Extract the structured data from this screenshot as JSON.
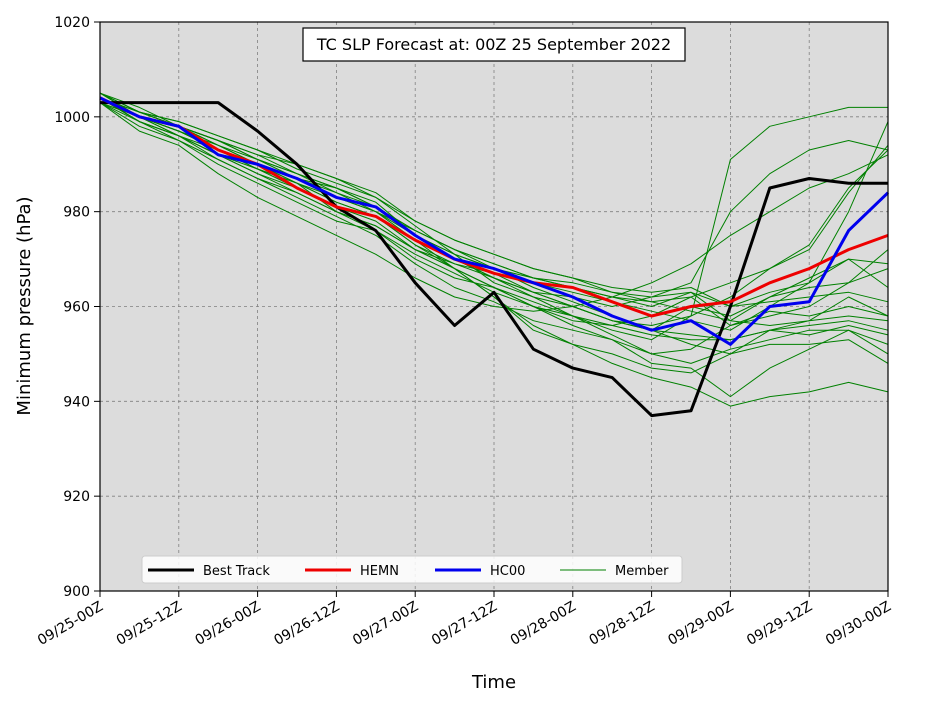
{
  "chart_data": {
    "type": "line",
    "title": "TC SLP Forecast at: 00Z 25 September 2022",
    "xlabel": "Time",
    "ylabel": "Minimum pressure (hPa)",
    "ylim": [
      900,
      1020
    ],
    "yticks": [
      900,
      920,
      940,
      960,
      980,
      1000,
      1020
    ],
    "x_tick_labels": [
      "09/25-00Z",
      "09/25-12Z",
      "09/26-00Z",
      "09/26-12Z",
      "09/27-00Z",
      "09/27-12Z",
      "09/28-00Z",
      "09/28-12Z",
      "09/29-00Z",
      "09/29-12Z",
      "09/30-00Z"
    ],
    "x_hours": [
      0,
      6,
      12,
      18,
      24,
      30,
      36,
      42,
      48,
      54,
      60,
      66,
      72,
      78,
      84,
      90,
      96,
      102,
      108,
      114,
      120
    ],
    "grid": true,
    "background_color": "#dcdcdc",
    "legend_position": "bottom-left",
    "series": [
      {
        "name": "Best Track",
        "color": "#000000",
        "width": 3,
        "values": [
          1003,
          1003,
          1003,
          1003,
          997,
          990,
          981,
          976,
          965,
          956,
          963,
          951,
          947,
          945,
          937,
          938,
          960,
          985,
          987,
          986,
          986
        ]
      },
      {
        "name": "HEMN",
        "color": "#ee0000",
        "width": 3,
        "values": [
          1004,
          1000,
          998,
          993,
          990,
          985,
          981,
          979,
          974,
          970,
          967,
          965,
          964,
          961,
          958,
          960,
          961,
          965,
          968,
          972,
          975
        ]
      },
      {
        "name": "HC00",
        "color": "#0000ee",
        "width": 3,
        "values": [
          1004,
          1000,
          998,
          992,
          990,
          987,
          983,
          981,
          975,
          970,
          968,
          965,
          962,
          958,
          955,
          957,
          952,
          960,
          961,
          976,
          984
        ]
      },
      {
        "name": "Member",
        "color": "#008000",
        "width": 1,
        "members": [
          [
            1005,
            1000,
            997,
            993,
            990,
            986,
            982,
            979,
            974,
            970,
            966,
            963,
            962,
            960,
            962,
            965,
            980,
            988,
            993,
            995,
            993
          ],
          [
            1004,
            999,
            996,
            992,
            988,
            984,
            980,
            977,
            972,
            969,
            966,
            962,
            958,
            955,
            953,
            958,
            991,
            998,
            1000,
            1002,
            1002
          ],
          [
            1004,
            1001,
            998,
            995,
            991,
            987,
            983,
            980,
            976,
            972,
            968,
            965,
            963,
            961,
            959,
            957,
            955,
            960,
            965,
            980,
            999
          ],
          [
            1003,
            998,
            995,
            990,
            986,
            982,
            978,
            976,
            970,
            966,
            964,
            961,
            958,
            954,
            950,
            948,
            951,
            953,
            955,
            955,
            952
          ],
          [
            1005,
            1001,
            999,
            996,
            993,
            990,
            987,
            984,
            978,
            974,
            971,
            968,
            966,
            963,
            962,
            963,
            957,
            962,
            966,
            970,
            969
          ],
          [
            1004,
            1000,
            996,
            991,
            987,
            983,
            979,
            975,
            969,
            964,
            961,
            957,
            955,
            953,
            948,
            947,
            941,
            947,
            951,
            955,
            950
          ],
          [
            1005,
            1000,
            998,
            994,
            990,
            987,
            985,
            982,
            975,
            971,
            968,
            964,
            961,
            958,
            955,
            960,
            958,
            962,
            964,
            965,
            972
          ],
          [
            1004,
            999,
            996,
            993,
            990,
            986,
            980,
            977,
            972,
            968,
            964,
            960,
            957,
            956,
            958,
            962,
            965,
            968,
            973,
            985,
            993
          ],
          [
            1003,
            1000,
            997,
            993,
            989,
            985,
            981,
            979,
            973,
            969,
            967,
            963,
            960,
            957,
            956,
            958,
            962,
            968,
            972,
            984,
            994
          ],
          [
            1004,
            1001,
            999,
            996,
            993,
            989,
            986,
            983,
            977,
            971,
            965,
            962,
            960,
            957,
            955,
            954,
            953,
            955,
            956,
            957,
            955
          ],
          [
            1005,
            1002,
            998,
            995,
            992,
            988,
            984,
            980,
            974,
            968,
            962,
            955,
            952,
            948,
            945,
            943,
            939,
            941,
            942,
            944,
            942
          ],
          [
            1004,
            1000,
            997,
            994,
            991,
            988,
            985,
            981,
            976,
            972,
            969,
            966,
            964,
            962,
            960,
            963,
            960,
            963,
            965,
            970,
            964
          ],
          [
            1003,
            997,
            994,
            988,
            983,
            979,
            975,
            971,
            966,
            962,
            960,
            959,
            960,
            962,
            965,
            969,
            975,
            980,
            985,
            988,
            992
          ],
          [
            1004,
            1000,
            997,
            993,
            989,
            986,
            982,
            979,
            973,
            968,
            962,
            956,
            952,
            950,
            947,
            946,
            950,
            955,
            957,
            962,
            958
          ],
          [
            1005,
            1001,
            998,
            995,
            992,
            990,
            987,
            983,
            978,
            974,
            971,
            968,
            966,
            964,
            963,
            964,
            960,
            961,
            962,
            963,
            961
          ],
          [
            1004,
            999,
            996,
            992,
            989,
            986,
            983,
            980,
            975,
            970,
            966,
            963,
            960,
            957,
            955,
            952,
            950,
            952,
            952,
            953,
            948
          ],
          [
            1004,
            1000,
            998,
            995,
            991,
            988,
            985,
            981,
            976,
            972,
            969,
            966,
            964,
            962,
            961,
            962,
            956,
            958,
            960,
            965,
            968
          ],
          [
            1005,
            1001,
            998,
            994,
            990,
            987,
            984,
            981,
            975,
            971,
            968,
            966,
            965,
            963,
            961,
            959,
            957,
            956,
            957,
            958,
            957
          ],
          [
            1004,
            1000,
            996,
            992,
            988,
            985,
            981,
            978,
            972,
            968,
            964,
            960,
            956,
            953,
            950,
            951,
            956,
            959,
            958,
            960,
            958
          ],
          [
            1003,
            999,
            995,
            991,
            987,
            984,
            980,
            976,
            971,
            967,
            963,
            960,
            958,
            956,
            954,
            953,
            953,
            955,
            954,
            956,
            954
          ]
        ]
      }
    ],
    "legend": [
      {
        "label": "Best Track",
        "color": "#000000",
        "width": 3
      },
      {
        "label": "HEMN",
        "color": "#ee0000",
        "width": 3
      },
      {
        "label": "HC00",
        "color": "#0000ee",
        "width": 3
      },
      {
        "label": "Member",
        "color": "#008000",
        "width": 1
      }
    ]
  }
}
